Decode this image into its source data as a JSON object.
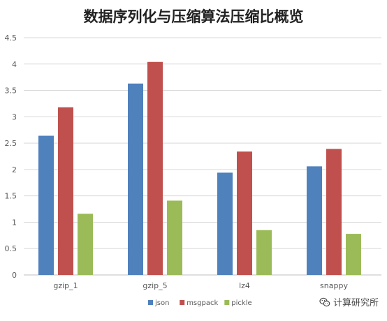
{
  "chart_data": {
    "type": "bar",
    "title": "数据序列化与压缩算法压缩比概览",
    "categories": [
      "gzip_1",
      "gzip_5",
      "lz4",
      "snappy"
    ],
    "series": [
      {
        "name": "json",
        "color": "#4f81bd",
        "values": [
          2.64,
          3.63,
          1.94,
          2.06
        ]
      },
      {
        "name": "msgpack",
        "color": "#c0504d",
        "values": [
          3.18,
          4.04,
          2.34,
          2.39
        ]
      },
      {
        "name": "pickle",
        "color": "#9bbb59",
        "values": [
          1.16,
          1.41,
          0.85,
          0.78
        ]
      }
    ],
    "ylim": [
      0,
      4.5
    ],
    "yticks": [
      "0",
      "0.5",
      "1",
      "1.5",
      "2",
      "2.5",
      "3",
      "3.5",
      "4",
      "4.5"
    ],
    "xlabel": "",
    "ylabel": "",
    "grid": true,
    "legend_position": "bottom"
  },
  "watermark": {
    "text": "计算研究所",
    "icon": "wechat-icon"
  }
}
